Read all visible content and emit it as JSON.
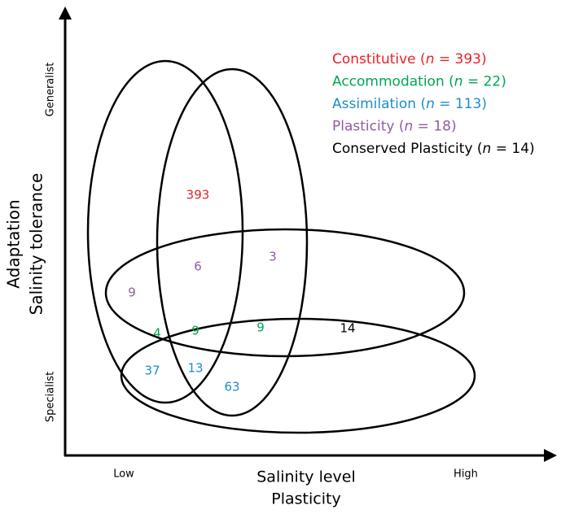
{
  "axes": {
    "y_title_outer": "Adaptation",
    "y_title_inner": "Salinity tolerance",
    "y_top": "Generalist",
    "y_bottom": "Specialist",
    "x_title": "Salinity level",
    "x_subtitle": "Plasticity",
    "x_left": "Low",
    "x_right": "High"
  },
  "legend": [
    {
      "before": "Constitutive (",
      "italic": "n",
      "after": " = 393)",
      "color": "#e8202a"
    },
    {
      "before": "Accommodation (",
      "italic": "n",
      "after": " = 22)",
      "color": "#00a651"
    },
    {
      "before": "Assimilation (",
      "italic": "n",
      "after": " = 113)",
      "color": "#1b8dce"
    },
    {
      "before": "Plasticity (",
      "italic": "n",
      "after": " = 18)",
      "color": "#8e5ca8"
    },
    {
      "before": "Conserved Plasticity (",
      "italic": "n",
      "after": " = 14)",
      "color": "#000000"
    }
  ],
  "regions": [
    {
      "value": 393,
      "color": "#e8202a"
    },
    {
      "value": 6,
      "color": "#8e5ca8"
    },
    {
      "value": 3,
      "color": "#8e5ca8"
    },
    {
      "value": 9,
      "color": "#8e5ca8"
    },
    {
      "value": 4,
      "color": "#00a651"
    },
    {
      "value": 9,
      "color": "#00a651"
    },
    {
      "value": 9,
      "color": "#00a651"
    },
    {
      "value": 14,
      "color": "#000000"
    },
    {
      "value": 37,
      "color": "#1b8dce"
    },
    {
      "value": 13,
      "color": "#1b8dce"
    },
    {
      "value": 63,
      "color": "#1b8dce"
    }
  ]
}
